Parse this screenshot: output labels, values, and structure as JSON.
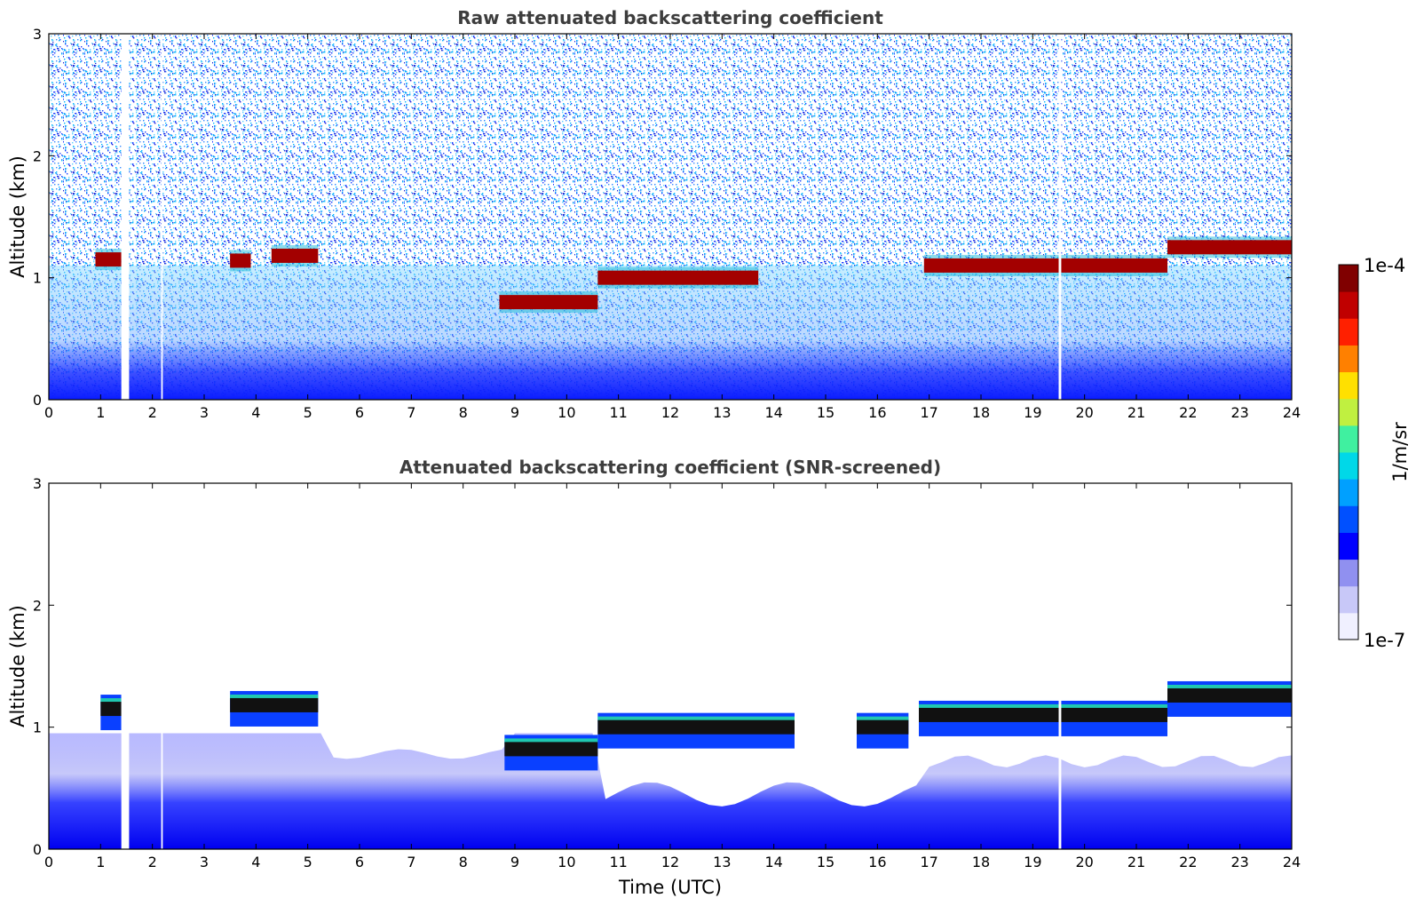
{
  "chart_data": [
    {
      "type": "heatmap",
      "title": "Raw attenuated backscattering coefficient",
      "xlabel": "",
      "ylabel": "Altitude (km)",
      "xlim": [
        0,
        24
      ],
      "ylim": [
        0,
        3
      ],
      "x_ticks": [
        "0",
        "1",
        "2",
        "3",
        "4",
        "5",
        "6",
        "7",
        "8",
        "9",
        "10",
        "11",
        "12",
        "13",
        "14",
        "15",
        "16",
        "17",
        "18",
        "19",
        "20",
        "21",
        "22",
        "23",
        "24"
      ],
      "y_ticks": [
        "0",
        "1",
        "2",
        "3"
      ],
      "data_gaps_utc": [
        [
          1.4,
          1.55
        ],
        [
          2.17,
          2.2
        ],
        [
          19.5,
          19.55
        ]
      ],
      "cloud_layer_segments": [
        {
          "t_start": 0.9,
          "t_end": 1.4,
          "altitude_km": 1.15
        },
        {
          "t_start": 3.5,
          "t_end": 3.9,
          "altitude_km": 1.14
        },
        {
          "t_start": 4.3,
          "t_end": 5.2,
          "altitude_km": 1.18
        },
        {
          "t_start": 8.7,
          "t_end": 10.6,
          "altitude_km": 0.8
        },
        {
          "t_start": 10.6,
          "t_end": 13.7,
          "altitude_km": 1.0
        },
        {
          "t_start": 16.9,
          "t_end": 21.6,
          "altitude_km": 1.1
        },
        {
          "t_start": 21.6,
          "t_end": 24,
          "altitude_km": 1.25
        }
      ],
      "boundary_layer_top_km": 0.55
    },
    {
      "type": "heatmap",
      "title": "Attenuated backscattering coefficient (SNR-screened)",
      "xlabel": "Time (UTC)",
      "ylabel": "Altitude (km)",
      "xlim": [
        0,
        24
      ],
      "ylim": [
        0,
        3
      ],
      "x_ticks": [
        "0",
        "1",
        "2",
        "3",
        "4",
        "5",
        "6",
        "7",
        "8",
        "9",
        "10",
        "11",
        "12",
        "13",
        "14",
        "15",
        "16",
        "17",
        "18",
        "19",
        "20",
        "21",
        "22",
        "23",
        "24"
      ],
      "y_ticks": [
        "0",
        "1",
        "2",
        "3"
      ],
      "data_gaps_utc": [
        [
          1.4,
          1.55
        ],
        [
          2.17,
          2.2
        ],
        [
          19.5,
          19.55
        ]
      ],
      "cloud_layer_segments": [
        {
          "t_start": 1.0,
          "t_end": 1.4,
          "altitude_km": 1.15
        },
        {
          "t_start": 3.5,
          "t_end": 5.2,
          "altitude_km": 1.18
        },
        {
          "t_start": 8.8,
          "t_end": 10.6,
          "altitude_km": 0.82
        },
        {
          "t_start": 10.6,
          "t_end": 14.4,
          "altitude_km": 1.0
        },
        {
          "t_start": 15.6,
          "t_end": 16.6,
          "altitude_km": 1.0
        },
        {
          "t_start": 16.8,
          "t_end": 21.6,
          "altitude_km": 1.1
        },
        {
          "t_start": 21.6,
          "t_end": 24,
          "altitude_km": 1.26
        }
      ]
    }
  ],
  "colorbar": {
    "label": "1/m/sr",
    "min_label": "1e-7",
    "max_label": "1e-4",
    "scale": "log",
    "colors": [
      "#f0f0ff",
      "#c8c8f8",
      "#9090f0",
      "#0000ff",
      "#0050ff",
      "#00a0ff",
      "#00d8e8",
      "#40f0a0",
      "#c0f040",
      "#ffe000",
      "#ff8000",
      "#ff2000",
      "#c00000",
      "#800000"
    ]
  }
}
